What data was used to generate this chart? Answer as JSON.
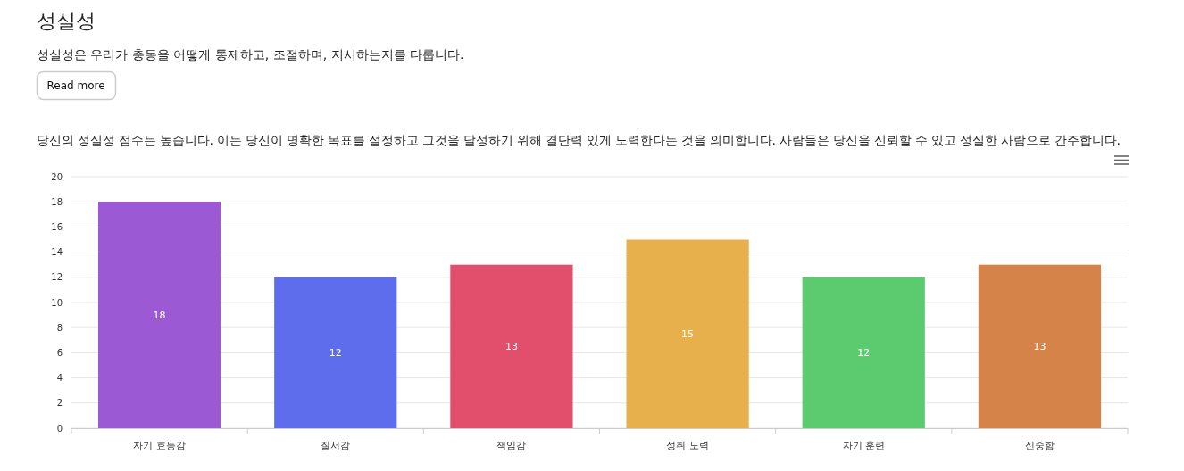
{
  "chart_data": {
    "type": "bar",
    "title": "성실성",
    "subtitle": "성실성은 우리가 충동을 어떻게 통제하고, 조절하며, 지시하는지를 다룹니다.",
    "annotations": [
      "Read more",
      "당신의 성실성 점수는 높습니다. 이는 당신이 명확한 목표를 설정하고 그것을 달성하기 위해 결단력 있게 노력한다는 것을 의미합니다. 사람들은 당신을 신뢰할 수 있고 성실한 사람으로 간주합니다."
    ],
    "categories": [
      "자기 효능감",
      "질서감",
      "책임감",
      "성취 노력",
      "자기 훈련",
      "신중함"
    ],
    "values": [
      18,
      12,
      13,
      15,
      12,
      13
    ],
    "colors": [
      "#9b59d3",
      "#5e6dec",
      "#e14f6d",
      "#e8b04d",
      "#5ccb70",
      "#d6834a"
    ],
    "ylim": [
      0,
      20
    ],
    "yticks": [
      0,
      2,
      4,
      6,
      8,
      10,
      12,
      14,
      16,
      18,
      20
    ],
    "grid": "y",
    "data_labels": true
  }
}
